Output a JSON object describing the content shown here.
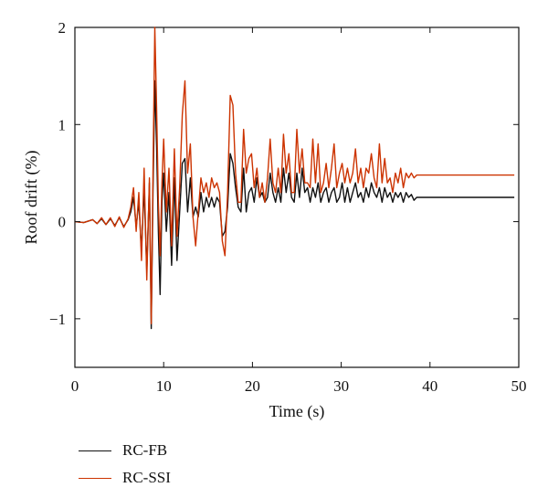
{
  "chart_data": {
    "type": "line",
    "xlabel": "Time (s)",
    "ylabel": "Roof drift (%)",
    "xlim": [
      0,
      50
    ],
    "ylim": [
      -1.5,
      2
    ],
    "xticks": [
      0,
      10,
      20,
      30,
      40,
      50
    ],
    "yticks": [
      -1,
      0,
      1,
      2
    ],
    "grid": false,
    "legend_position": "bottom-left (below plot)",
    "series": [
      {
        "name": "RC-FB",
        "color": "#111111",
        "x": [
          0,
          1,
          2,
          2.5,
          3,
          3.5,
          4,
          4.5,
          5,
          5.5,
          6,
          6.3,
          6.6,
          6.9,
          7.2,
          7.5,
          7.8,
          8.1,
          8.4,
          8.6,
          8.8,
          9.0,
          9.2,
          9.4,
          9.6,
          9.8,
          10.0,
          10.3,
          10.6,
          10.9,
          11.2,
          11.5,
          11.8,
          12.1,
          12.4,
          12.7,
          13.0,
          13.3,
          13.6,
          13.9,
          14.2,
          14.5,
          14.8,
          15.1,
          15.4,
          15.7,
          16.0,
          16.3,
          16.6,
          16.9,
          17.2,
          17.5,
          17.8,
          18.1,
          18.4,
          18.7,
          19.0,
          19.3,
          19.6,
          19.9,
          20.2,
          20.5,
          20.8,
          21.1,
          21.4,
          21.7,
          22.0,
          22.3,
          22.6,
          22.9,
          23.2,
          23.5,
          23.8,
          24.1,
          24.4,
          24.7,
          25.0,
          25.3,
          25.6,
          25.9,
          26.2,
          26.5,
          26.8,
          27.1,
          27.4,
          27.7,
          28.0,
          28.3,
          28.6,
          28.9,
          29.2,
          29.5,
          29.8,
          30.1,
          30.4,
          30.7,
          31.0,
          31.3,
          31.6,
          31.9,
          32.2,
          32.5,
          32.8,
          33.1,
          33.4,
          33.7,
          34.0,
          34.3,
          34.6,
          34.9,
          35.2,
          35.5,
          35.8,
          36.1,
          36.4,
          36.7,
          37.0,
          37.3,
          37.6,
          37.9,
          38.2,
          38.5,
          39.0,
          40,
          45,
          49.5
        ],
        "values": [
          0.0,
          -0.01,
          0.02,
          -0.02,
          0.03,
          -0.03,
          0.03,
          -0.04,
          0.04,
          -0.05,
          0.02,
          0.1,
          0.25,
          -0.05,
          0.2,
          -0.3,
          0.35,
          -0.5,
          0.4,
          -1.1,
          0.3,
          1.45,
          0.8,
          -0.1,
          -0.75,
          0.2,
          0.5,
          -0.1,
          0.3,
          -0.45,
          0.45,
          -0.4,
          0.1,
          0.6,
          0.65,
          0.1,
          0.45,
          0.05,
          0.15,
          0.05,
          0.3,
          0.1,
          0.25,
          0.15,
          0.25,
          0.15,
          0.25,
          0.2,
          -0.15,
          -0.1,
          0.15,
          0.7,
          0.6,
          0.35,
          0.15,
          0.1,
          0.55,
          0.1,
          0.3,
          0.35,
          0.2,
          0.45,
          0.25,
          0.3,
          0.2,
          0.25,
          0.5,
          0.3,
          0.2,
          0.35,
          0.2,
          0.55,
          0.3,
          0.5,
          0.25,
          0.2,
          0.5,
          0.25,
          0.55,
          0.3,
          0.35,
          0.2,
          0.35,
          0.25,
          0.4,
          0.2,
          0.3,
          0.35,
          0.2,
          0.3,
          0.35,
          0.2,
          0.25,
          0.4,
          0.2,
          0.35,
          0.2,
          0.3,
          0.4,
          0.25,
          0.3,
          0.2,
          0.35,
          0.25,
          0.4,
          0.3,
          0.25,
          0.35,
          0.2,
          0.35,
          0.25,
          0.3,
          0.2,
          0.3,
          0.25,
          0.3,
          0.2,
          0.3,
          0.25,
          0.28,
          0.22,
          0.25,
          0.25,
          0.25,
          0.25,
          0.25
        ]
      },
      {
        "name": "RC-SSI",
        "color": "#cc3300",
        "x": [
          0,
          1,
          2,
          2.5,
          3,
          3.5,
          4,
          4.5,
          5,
          5.5,
          6,
          6.3,
          6.6,
          6.9,
          7.2,
          7.5,
          7.8,
          8.1,
          8.4,
          8.6,
          8.8,
          9.0,
          9.2,
          9.4,
          9.6,
          9.8,
          10.0,
          10.3,
          10.6,
          10.9,
          11.2,
          11.5,
          11.8,
          12.1,
          12.4,
          12.7,
          13.0,
          13.3,
          13.6,
          13.9,
          14.2,
          14.5,
          14.8,
          15.1,
          15.4,
          15.7,
          16.0,
          16.3,
          16.6,
          16.9,
          17.2,
          17.5,
          17.8,
          18.1,
          18.4,
          18.7,
          19.0,
          19.3,
          19.6,
          19.9,
          20.2,
          20.5,
          20.8,
          21.1,
          21.4,
          21.7,
          22.0,
          22.3,
          22.6,
          22.9,
          23.2,
          23.5,
          23.8,
          24.1,
          24.4,
          24.7,
          25.0,
          25.3,
          25.6,
          25.9,
          26.2,
          26.5,
          26.8,
          27.1,
          27.4,
          27.7,
          28.0,
          28.3,
          28.6,
          28.9,
          29.2,
          29.5,
          29.8,
          30.1,
          30.4,
          30.7,
          31.0,
          31.3,
          31.6,
          31.9,
          32.2,
          32.5,
          32.8,
          33.1,
          33.4,
          33.7,
          34.0,
          34.3,
          34.6,
          34.9,
          35.2,
          35.5,
          35.8,
          36.1,
          36.4,
          36.7,
          37.0,
          37.3,
          37.6,
          37.9,
          38.2,
          38.5,
          39.0,
          40,
          45,
          49.5
        ],
        "values": [
          0.0,
          -0.01,
          0.02,
          -0.02,
          0.04,
          -0.03,
          0.04,
          -0.05,
          0.05,
          -0.06,
          0.03,
          0.15,
          0.35,
          -0.1,
          0.3,
          -0.4,
          0.55,
          -0.6,
          0.45,
          -1.05,
          0.5,
          2.0,
          1.2,
          0.2,
          -0.35,
          0.4,
          0.85,
          0.1,
          0.55,
          -0.25,
          0.75,
          -0.15,
          0.35,
          1.1,
          1.45,
          0.5,
          0.8,
          0.05,
          -0.25,
          0.1,
          0.45,
          0.3,
          0.4,
          0.25,
          0.45,
          0.35,
          0.4,
          0.3,
          -0.2,
          -0.35,
          0.3,
          1.3,
          1.2,
          0.5,
          0.2,
          0.2,
          0.95,
          0.5,
          0.65,
          0.7,
          0.35,
          0.55,
          0.25,
          0.4,
          0.2,
          0.45,
          0.85,
          0.4,
          0.3,
          0.55,
          0.3,
          0.9,
          0.5,
          0.7,
          0.3,
          0.3,
          0.95,
          0.5,
          0.75,
          0.4,
          0.4,
          0.35,
          0.85,
          0.4,
          0.8,
          0.3,
          0.4,
          0.6,
          0.35,
          0.55,
          0.8,
          0.35,
          0.5,
          0.6,
          0.4,
          0.55,
          0.4,
          0.5,
          0.75,
          0.4,
          0.55,
          0.35,
          0.55,
          0.5,
          0.7,
          0.45,
          0.35,
          0.8,
          0.4,
          0.65,
          0.4,
          0.45,
          0.3,
          0.5,
          0.4,
          0.55,
          0.35,
          0.5,
          0.45,
          0.5,
          0.45,
          0.48,
          0.48,
          0.48,
          0.48,
          0.48
        ]
      }
    ]
  }
}
